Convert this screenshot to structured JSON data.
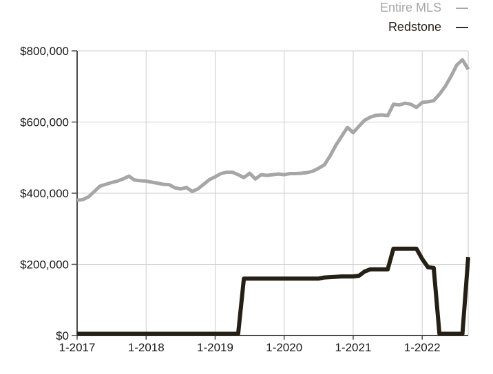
{
  "legend": {
    "marker": "—",
    "position": "top-right"
  },
  "chart_data": {
    "type": "line",
    "title": "",
    "xlabel": "",
    "ylabel": "",
    "grid": true,
    "ylim": [
      0,
      800000
    ],
    "y_tick_labels": [
      "$0",
      "$200,000",
      "$400,000",
      "$600,000",
      "$800,000"
    ],
    "y_tick_values": [
      0,
      200000,
      400000,
      600000,
      800000
    ],
    "x_tick_labels": [
      "1-2017",
      "1-2018",
      "1-2019",
      "1-2020",
      "1-2021",
      "1-2022"
    ],
    "x_tick_months": [
      0,
      12,
      24,
      36,
      48,
      60
    ],
    "x_range_months": "1-2017 to 9-2022",
    "months_total": 69,
    "axis_color": "#4a4a4a",
    "gridline_color": "#cdcdcd",
    "tick_label_color": "#181818",
    "series": [
      {
        "name": "Entire MLS",
        "color": "#a6a6a6",
        "stroke_width": 5,
        "values": [
          380000,
          382000,
          390000,
          405000,
          420000,
          425000,
          430000,
          434000,
          440000,
          448000,
          437000,
          435000,
          434000,
          431000,
          428000,
          425000,
          424000,
          415000,
          412000,
          416000,
          405000,
          412000,
          425000,
          438000,
          446000,
          455000,
          459000,
          459000,
          452000,
          444000,
          456000,
          440000,
          452000,
          450000,
          452000,
          454000,
          452000,
          455000,
          455000,
          456000,
          458000,
          462000,
          470000,
          480000,
          505000,
          535000,
          560000,
          585000,
          570000,
          588000,
          605000,
          614000,
          619000,
          620000,
          618000,
          650000,
          648000,
          653000,
          650000,
          641000,
          655000,
          657000,
          660000,
          678000,
          700000,
          728000,
          760000,
          775000,
          748000
        ]
      },
      {
        "name": "Redstone",
        "color": "#261f15",
        "stroke_width": 6,
        "values": [
          0,
          0,
          0,
          0,
          0,
          0,
          0,
          0,
          0,
          0,
          0,
          0,
          0,
          0,
          0,
          0,
          0,
          0,
          0,
          0,
          0,
          0,
          0,
          0,
          0,
          0,
          0,
          0,
          0,
          160000,
          160000,
          160000,
          160000,
          160000,
          160000,
          160000,
          160000,
          160000,
          160000,
          160000,
          160000,
          160000,
          160000,
          163000,
          164000,
          165000,
          166000,
          166000,
          166000,
          168000,
          180000,
          186000,
          186000,
          186000,
          186000,
          244000,
          244000,
          244000,
          244000,
          244000,
          215000,
          192000,
          190000,
          0,
          0,
          0,
          0,
          0,
          220000
        ]
      }
    ]
  }
}
